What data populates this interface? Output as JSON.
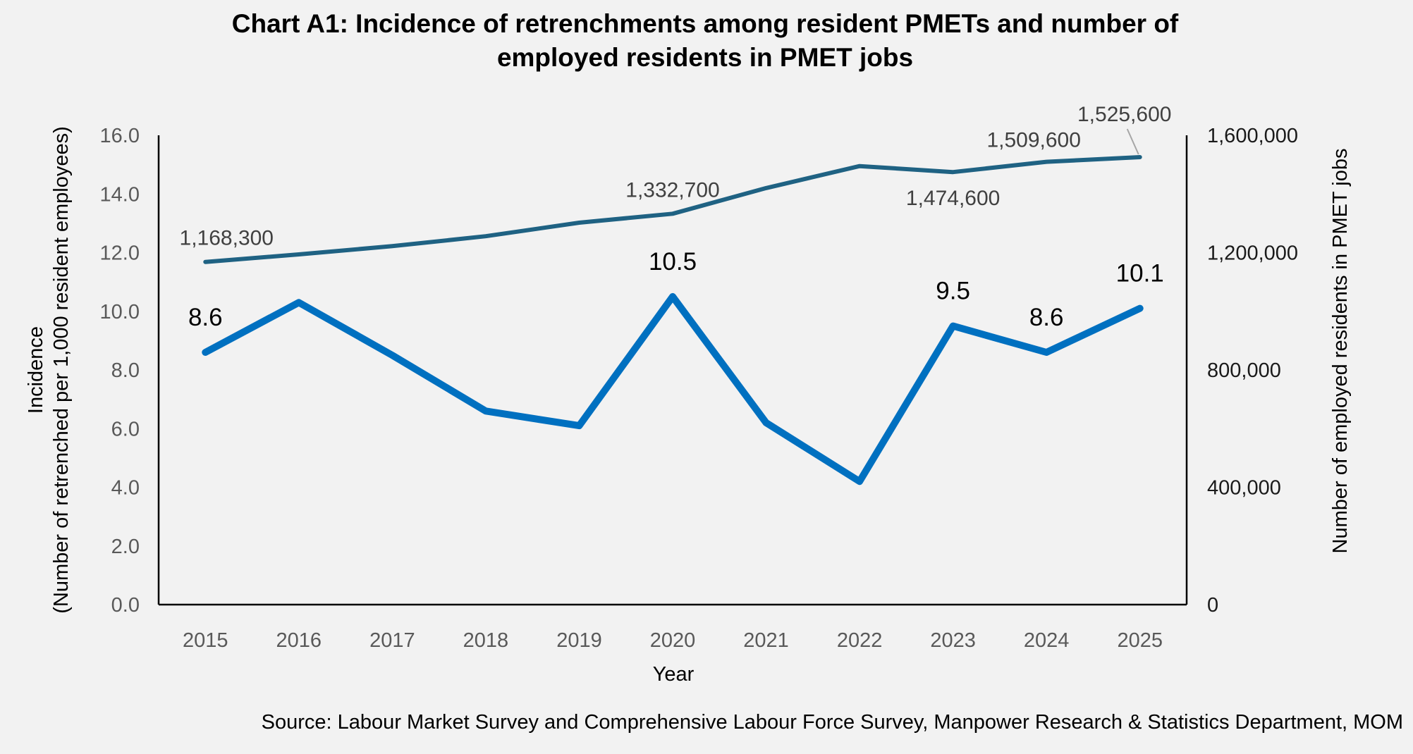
{
  "chart_data": {
    "type": "line",
    "title_line1": "Chart A1: Incidence of retrenchments among resident PMETs and number of",
    "title_line2": "employed residents in PMET jobs",
    "xlabel": "Year",
    "ylabel_left_line1": "Incidence",
    "ylabel_left_line2": "(Number of retrenched per 1,000 resident employees)",
    "ylabel_right": "Number of employed residents in PMET jobs",
    "categories": [
      "2015",
      "2016",
      "2017",
      "2018",
      "2019",
      "2020",
      "2021",
      "2022",
      "2023",
      "2024",
      "2025"
    ],
    "y_left": {
      "lim": [
        0,
        16
      ],
      "ticks": [
        "0.0",
        "2.0",
        "4.0",
        "6.0",
        "8.0",
        "10.0",
        "12.0",
        "14.0",
        "16.0"
      ]
    },
    "y_right": {
      "lim": [
        0,
        1600000
      ],
      "ticks": [
        "0",
        "400,000",
        "800,000",
        "1,200,000",
        "1,600,000"
      ]
    },
    "series": [
      {
        "axis": "left",
        "color": "#0070c0",
        "values": [
          8.6,
          10.3,
          8.5,
          6.6,
          6.1,
          10.5,
          6.2,
          4.2,
          9.5,
          8.6,
          10.1
        ],
        "data_labels": [
          "8.6",
          "",
          "",
          "",
          "",
          "10.5",
          "",
          "",
          "9.5",
          "8.6",
          "10.1"
        ]
      },
      {
        "axis": "right",
        "color": "#1f6283",
        "values": [
          1168300,
          1194000,
          1222000,
          1256000,
          1302000,
          1332700,
          1420000,
          1495000,
          1474600,
          1509600,
          1525600
        ],
        "data_labels": [
          "1,168,300",
          "",
          "",
          "",
          "",
          "1,332,700",
          "",
          "",
          "1,474,600",
          "1,509,600",
          "1,525,600"
        ]
      }
    ],
    "grid": false,
    "legend": "none",
    "source": "Source: Labour Market Survey and Comprehensive Labour Force Survey, Manpower Research & Statistics Department, MOM"
  }
}
